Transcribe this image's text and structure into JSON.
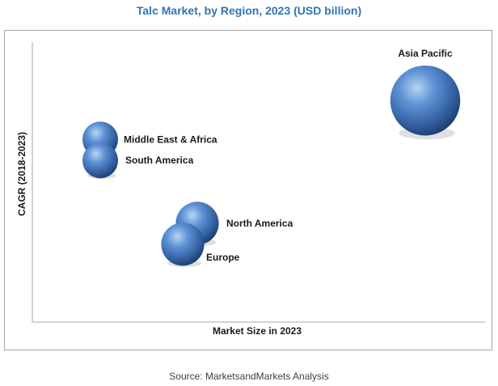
{
  "chart": {
    "title": "Talc Market, by Region, 2023 (USD billion)",
    "source": "Source: MarketsandMarkets Analysis"
  },
  "colors": {
    "title": "#2e75b6",
    "bubble_light": "#9dc3ee",
    "bubble_mid": "#4a80c8",
    "bubble_dark": "#1f3f70",
    "axis": "#a6a6a6",
    "label": "#1a1a1a"
  },
  "chart_data": {
    "type": "scatter",
    "title": "Talc Market, by Region, 2023 (USD billion)",
    "xlabel": "Market Size in 2023",
    "ylabel": "CAGR (2018-2023)",
    "grid": false,
    "series": [
      {
        "name": "Asia Pacific",
        "x": 8.1,
        "y": 7.4,
        "size": 2.0
      },
      {
        "name": "Middle East & Africa",
        "x": 1.4,
        "y": 6.1,
        "size": 1.0
      },
      {
        "name": "South America",
        "x": 1.4,
        "y": 5.4,
        "size": 1.0
      },
      {
        "name": "North America",
        "x": 3.4,
        "y": 3.3,
        "size": 1.3
      },
      {
        "name": "Europe",
        "x": 3.1,
        "y": 2.6,
        "size": 1.3
      }
    ]
  }
}
